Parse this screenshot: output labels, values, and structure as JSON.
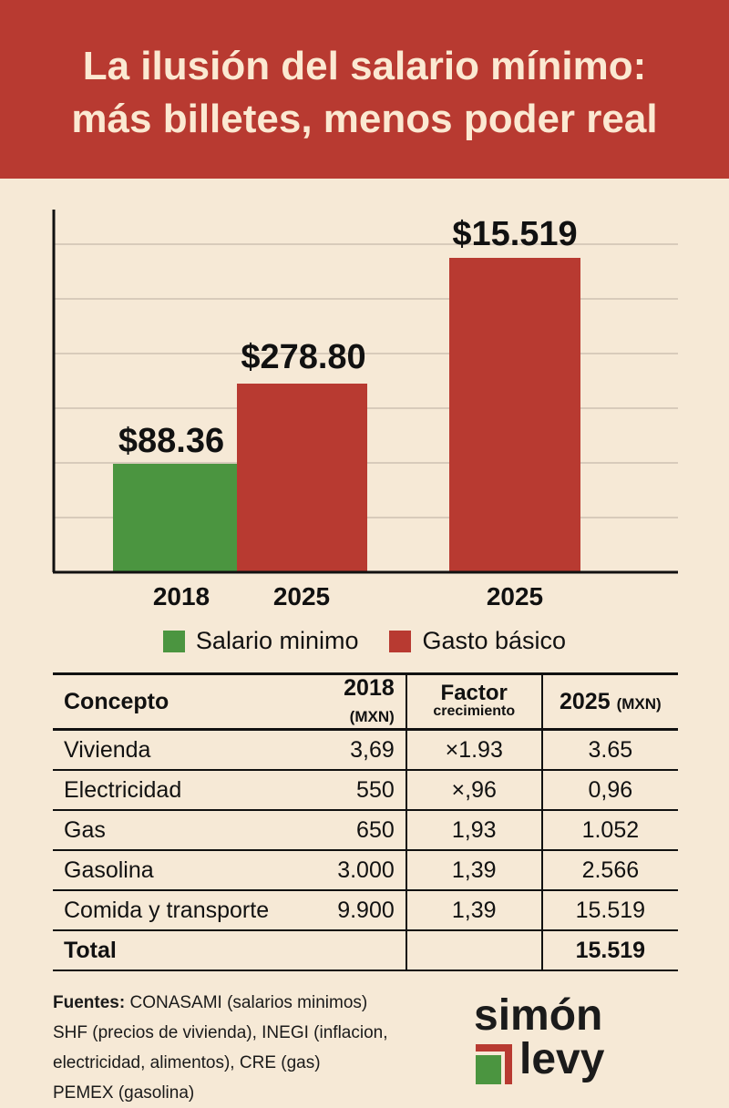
{
  "header": {
    "title_line1": "La ilusión del salario mínimo:",
    "title_line2": "más billetes, menos poder real"
  },
  "chart_data": {
    "type": "bar",
    "title": "La ilusión del salario mínimo: más billetes, menos poder real",
    "categories": [
      "2018",
      "2025",
      "2025"
    ],
    "bars": [
      {
        "category": "2018",
        "series": "Salario minimo",
        "label": "$88.36",
        "value": 88.36,
        "color": "#4b9540"
      },
      {
        "category": "2025",
        "series": "Gasto básico",
        "label": "$278.80",
        "value": 278.8,
        "color": "#b83a31"
      },
      {
        "category": "2025",
        "series": "Gasto básico",
        "label": "$15.519",
        "value": 15519,
        "color": "#b83a31"
      }
    ],
    "legend": [
      {
        "name": "Salario minimo",
        "color": "#4b9540"
      },
      {
        "name": "Gasto básico",
        "color": "#b83a31"
      }
    ],
    "legend_position": "bottom",
    "grid": true,
    "xlabel": "",
    "ylabel": ""
  },
  "table": {
    "headers": {
      "concepto": "Concepto",
      "y2018": "2018",
      "y2018_unit": "(MXN)",
      "factor_top": "Factor",
      "factor_bottom": "crecimiento",
      "y2025": "2025",
      "y2025_unit": "(MXN)"
    },
    "rows": [
      {
        "concepto": "Vivienda",
        "v2018": "3,69",
        "factor": "×1.93",
        "v2025": "3.65"
      },
      {
        "concepto": "Electricidad",
        "v2018": "550",
        "factor": "×,96",
        "v2025": "0,96"
      },
      {
        "concepto": "Gas",
        "v2018": "650",
        "factor": "1,93",
        "v2025": "1.052"
      },
      {
        "concepto": "Gasolina",
        "v2018": "3.000",
        "factor": "1,39",
        "v2025": "2.566"
      },
      {
        "concepto": "Comida y transporte",
        "v2018": "9.900",
        "factor": "1,39",
        "v2025": "15.519"
      }
    ],
    "total": {
      "label": "Total",
      "v2025": "15.519"
    }
  },
  "sources": {
    "lead": "Fuentes:",
    "s1_name": "CONASAMI",
    "s1_desc": "(salarios minimos)",
    "s2_name": "SHF",
    "s2_desc": "(precios de vivienda),",
    "s3_name": "INEGI",
    "s3_desc": "(inflacion,",
    "s3_desc2": "electricidad, alimentos),",
    "s4_name": "CRE",
    "s4_desc": "(gas)",
    "s5_name": "PEMEX",
    "s5_desc": "(gasolina)"
  },
  "logo": {
    "line1": "simón",
    "line2": "levy"
  }
}
